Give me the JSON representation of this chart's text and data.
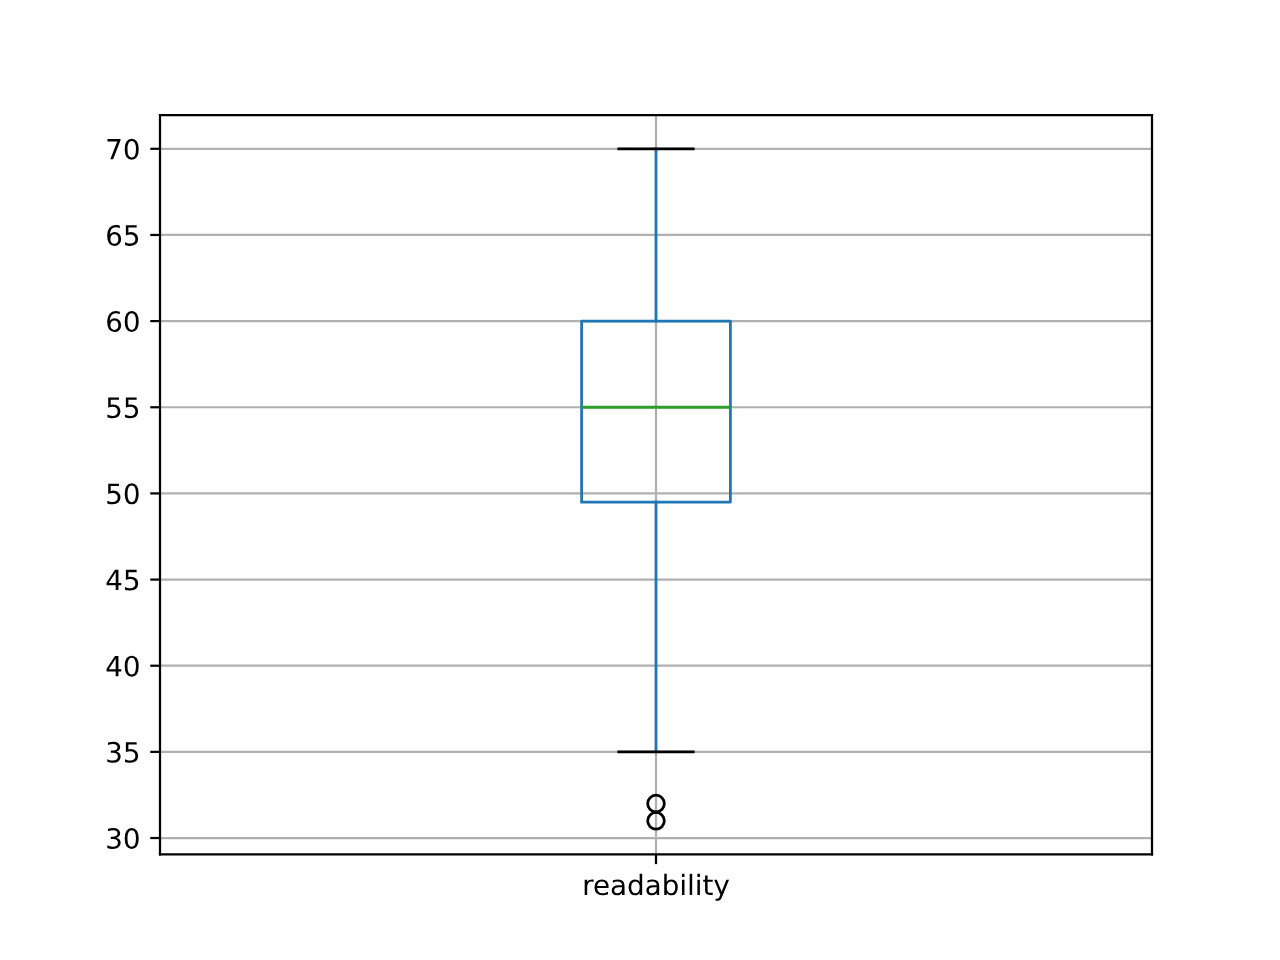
{
  "chart_data": {
    "type": "box",
    "categories": [
      "readability"
    ],
    "series": [
      {
        "color": "#1f77b4",
        "boxes": [
          {
            "low": 35,
            "q1": 49.5,
            "median": 55,
            "q3": 60,
            "high": 70,
            "outliers": [
              31,
              32
            ]
          }
        ]
      }
    ],
    "ylim": [
      29.05,
      71.95
    ],
    "yticks": [
      30,
      35,
      40,
      45,
      50,
      55,
      60,
      65,
      70
    ],
    "grid": true
  }
}
